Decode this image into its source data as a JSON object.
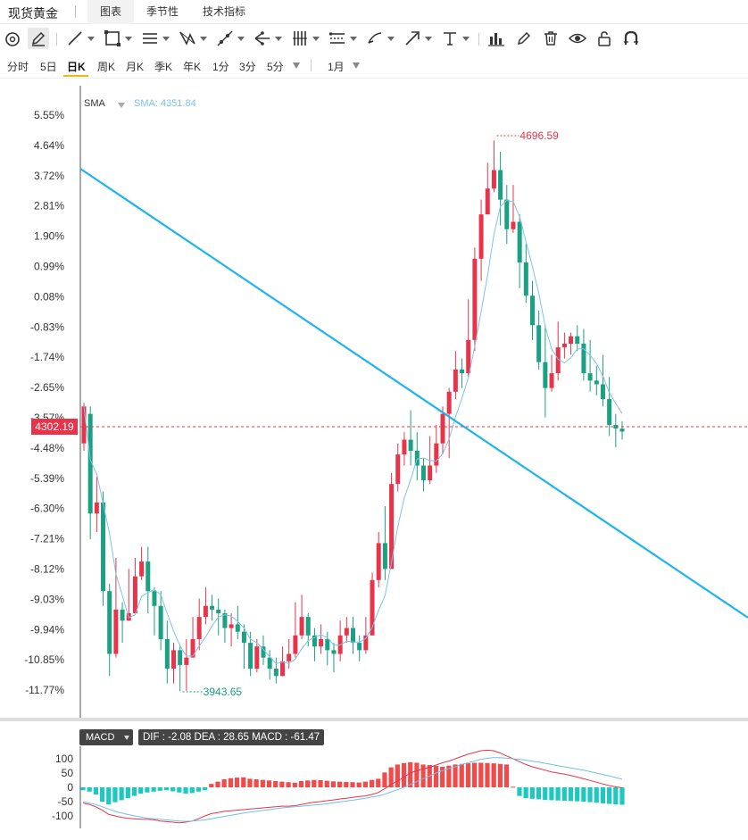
{
  "tabbar": {
    "title": "现货黄金",
    "tabs": [
      {
        "label": "图表",
        "active": true
      },
      {
        "label": "季节性",
        "active": false
      },
      {
        "label": "技术指标",
        "active": false
      }
    ]
  },
  "drawing_tools": [
    "circle-tool-icon",
    "pencil-icon",
    "line-icon",
    "rectangle-icon",
    "parallel-lines-icon",
    "pattern-icon",
    "ray-icon",
    "fork-icon",
    "fib-bars-icon",
    "levels-icon",
    "brush-icon",
    "arrow-icon",
    "text-icon",
    "bar-stats-icon",
    "pen-icon",
    "trash-icon",
    "eye-icon",
    "lock-icon",
    "magnet-icon"
  ],
  "periods": {
    "items": [
      "分时",
      "5日",
      "日K",
      "周K",
      "月K",
      "季K",
      "年K",
      "1分",
      "3分",
      "5分"
    ],
    "active": "日K",
    "range": "1月"
  },
  "main_chart": {
    "indicator_name": "SMA",
    "indicator_value": "SMA: 4351.84",
    "y_axis_labels": [
      "5.55%",
      "4.64%",
      "3.72%",
      "2.81%",
      "1.90%",
      "0.99%",
      "0.08%",
      "-0.83%",
      "-1.74%",
      "-2.65%",
      "-3.57%",
      "-4.48%",
      "-5.39%",
      "-6.30%",
      "-7.21%",
      "-8.12%",
      "-9.03%",
      "-9.94%",
      "-10.85%",
      "-11.77%"
    ],
    "current_price": "4302.19",
    "high_label": "4696.59",
    "low_label": "3943.65",
    "colors": {
      "up": "#e8344a",
      "down": "#1aa082",
      "sma": "#7ec3ea",
      "trendline": "#1eb4f0"
    }
  },
  "macd": {
    "badge": "MACD",
    "info": "DIF : -2.08  DEA : 28.65  MACD : -61.47",
    "y_axis_labels": [
      "100",
      "50",
      "0",
      "-50",
      "-100"
    ],
    "colors": {
      "pos": "#f04a4a",
      "neg": "#1ec8c0",
      "dif": "#e8344a",
      "dea": "#6ec0ea"
    }
  },
  "chart_data": {
    "type": "candlestick",
    "ohlc": [
      [
        4280,
        4330,
        4335,
        4270
      ],
      [
        4320,
        4185,
        4330,
        4150
      ],
      [
        4185,
        4200,
        4235,
        4160
      ],
      [
        4200,
        4080,
        4215,
        4060
      ],
      [
        4080,
        3995,
        4090,
        3965
      ],
      [
        3995,
        4055,
        4125,
        3990
      ],
      [
        4055,
        4040,
        4065,
        4010
      ],
      [
        4040,
        4050,
        4110,
        4040
      ],
      [
        4050,
        4100,
        4125,
        4050
      ],
      [
        4100,
        4120,
        4140,
        4095
      ],
      [
        4120,
        4080,
        4140,
        4050
      ],
      [
        4080,
        4060,
        4085,
        4020
      ],
      [
        4060,
        4015,
        4080,
        4000
      ],
      [
        4015,
        3975,
        4040,
        3955
      ],
      [
        3975,
        4000,
        4010,
        3955
      ],
      [
        4000,
        3980,
        4005,
        3945
      ],
      [
        3980,
        3990,
        4015,
        3945
      ],
      [
        3990,
        4015,
        4045,
        3990
      ],
      [
        4015,
        4045,
        4070,
        4000
      ],
      [
        4045,
        4060,
        4085,
        4035
      ],
      [
        4060,
        4055,
        4075,
        4040
      ],
      [
        4055,
        4050,
        4070,
        4020
      ],
      [
        4050,
        4030,
        4055,
        4010
      ],
      [
        4030,
        4035,
        4050,
        4005
      ],
      [
        4035,
        4025,
        4060,
        4015
      ],
      [
        4025,
        4010,
        4035,
        3975
      ],
      [
        4010,
        3975,
        4025,
        3965
      ],
      [
        3975,
        4005,
        4015,
        3970
      ],
      [
        4005,
        3990,
        4020,
        3980
      ],
      [
        3990,
        3975,
        4000,
        3960
      ],
      [
        3975,
        3965,
        3990,
        3955
      ],
      [
        3965,
        3985,
        4005,
        3965
      ],
      [
        3985,
        3995,
        4015,
        3975
      ],
      [
        3995,
        4020,
        4065,
        3990
      ],
      [
        4020,
        4045,
        4075,
        4015
      ],
      [
        4045,
        4020,
        4050,
        4005
      ],
      [
        4020,
        4005,
        4030,
        3985
      ],
      [
        4005,
        4015,
        4035,
        3995
      ],
      [
        4015,
        4000,
        4025,
        3980
      ],
      [
        4000,
        3995,
        4010,
        3970
      ],
      [
        3995,
        4020,
        4040,
        3985
      ],
      [
        4020,
        4030,
        4045,
        4010
      ],
      [
        4030,
        4010,
        4045,
        3995
      ],
      [
        4010,
        4000,
        4020,
        3985
      ],
      [
        4000,
        4020,
        4045,
        3995
      ],
      [
        4020,
        4095,
        4105,
        4020
      ],
      [
        4095,
        4145,
        4160,
        4085
      ],
      [
        4145,
        4110,
        4195,
        4095
      ],
      [
        4110,
        4225,
        4240,
        4110
      ],
      [
        4225,
        4265,
        4280,
        4215
      ],
      [
        4265,
        4285,
        4295,
        4250
      ],
      [
        4285,
        4270,
        4325,
        4250
      ],
      [
        4270,
        4250,
        4295,
        4230
      ],
      [
        4250,
        4230,
        4260,
        4215
      ],
      [
        4230,
        4250,
        4290,
        4225
      ],
      [
        4250,
        4280,
        4305,
        4240
      ],
      [
        4280,
        4320,
        4330,
        4265
      ],
      [
        4320,
        4350,
        4355,
        4260
      ],
      [
        4350,
        4380,
        4405,
        4340
      ],
      [
        4380,
        4375,
        4395,
        4355
      ],
      [
        4375,
        4420,
        4475,
        4370
      ],
      [
        4420,
        4530,
        4545,
        4405
      ],
      [
        4530,
        4590,
        4610,
        4500
      ],
      [
        4590,
        4625,
        4660,
        4600
      ],
      [
        4625,
        4650,
        4690,
        4620
      ],
      [
        4650,
        4610,
        4675,
        4575
      ],
      [
        4610,
        4570,
        4630,
        4550
      ],
      [
        4570,
        4580,
        4630,
        4565
      ],
      [
        4580,
        4525,
        4590,
        4490
      ],
      [
        4525,
        4480,
        4550,
        4470
      ],
      [
        4480,
        4440,
        4500,
        4420
      ],
      [
        4440,
        4390,
        4460,
        4380
      ],
      [
        4390,
        4355,
        4440,
        4315
      ],
      [
        4355,
        4375,
        4400,
        4350
      ],
      [
        4375,
        4410,
        4445,
        4365
      ],
      [
        4410,
        4415,
        4430,
        4395
      ],
      [
        4415,
        4425,
        4430,
        4400
      ],
      [
        4425,
        4415,
        4440,
        4405
      ],
      [
        4415,
        4375,
        4435,
        4365
      ],
      [
        4375,
        4365,
        4420,
        4350
      ],
      [
        4365,
        4360,
        4385,
        4345
      ],
      [
        4360,
        4340,
        4400,
        4330
      ],
      [
        4340,
        4305,
        4370,
        4290
      ],
      [
        4305,
        4300,
        4320,
        4275
      ],
      [
        4300,
        4296,
        4310,
        4285
      ]
    ],
    "sma_start_index": 1,
    "macd_hist": [
      -10,
      -15,
      -25,
      -50,
      -60,
      -52,
      -45,
      -38,
      -30,
      -22,
      -18,
      -15,
      -12,
      -10,
      -14,
      -18,
      -22,
      -20,
      -15,
      -10,
      12,
      20,
      28,
      32,
      34,
      35,
      30,
      28,
      26,
      24,
      22,
      20,
      18,
      16,
      22,
      24,
      26,
      25,
      23,
      21,
      20,
      19,
      18,
      17,
      20,
      26,
      30,
      52,
      70,
      80,
      85,
      88,
      86,
      80,
      78,
      75,
      72,
      76,
      80,
      82,
      84,
      86,
      86,
      85,
      84,
      82,
      80,
      2,
      -30,
      -38,
      -40,
      -42,
      -44,
      -45,
      -46,
      -47,
      -48,
      -49,
      -50,
      -52,
      -54,
      -56,
      -58,
      -60,
      -61
    ],
    "dif": [
      -55,
      -60,
      -68,
      -80,
      -95,
      -100,
      -105,
      -108,
      -110,
      -112,
      -112,
      -113,
      -118,
      -120,
      -122,
      -124,
      -122,
      -118,
      -110,
      -100,
      -92,
      -88,
      -84,
      -82,
      -80,
      -78,
      -76,
      -74,
      -72,
      -70,
      -68,
      -66,
      -66,
      -64,
      -60,
      -56,
      -52,
      -50,
      -47,
      -44,
      -41,
      -38,
      -35,
      -32,
      -30,
      -25,
      -18,
      -5,
      10,
      22,
      36,
      50,
      58,
      65,
      70,
      78,
      86,
      92,
      100,
      108,
      116,
      122,
      128,
      130,
      128,
      120,
      110,
      100,
      90,
      80,
      72,
      66,
      60,
      54,
      50,
      46,
      42,
      36,
      30,
      24,
      18,
      12,
      6,
      2,
      -2
    ],
    "dea": [
      -50,
      -55,
      -60,
      -68,
      -76,
      -84,
      -90,
      -95,
      -100,
      -104,
      -108,
      -110,
      -112,
      -114,
      -116,
      -118,
      -119,
      -118,
      -116,
      -114,
      -110,
      -106,
      -102,
      -98,
      -94,
      -90,
      -87,
      -84,
      -81,
      -78,
      -75,
      -72,
      -70,
      -68,
      -66,
      -64,
      -62,
      -60,
      -57,
      -54,
      -51,
      -48,
      -45,
      -42,
      -38,
      -34,
      -30,
      -24,
      -16,
      -8,
      0,
      10,
      20,
      30,
      40,
      50,
      58,
      66,
      72,
      80,
      86,
      92,
      98,
      102,
      104,
      104,
      102,
      100,
      98,
      95,
      92,
      88,
      84,
      80,
      76,
      72,
      68,
      64,
      60,
      55,
      50,
      45,
      40,
      34,
      28.65
    ]
  }
}
